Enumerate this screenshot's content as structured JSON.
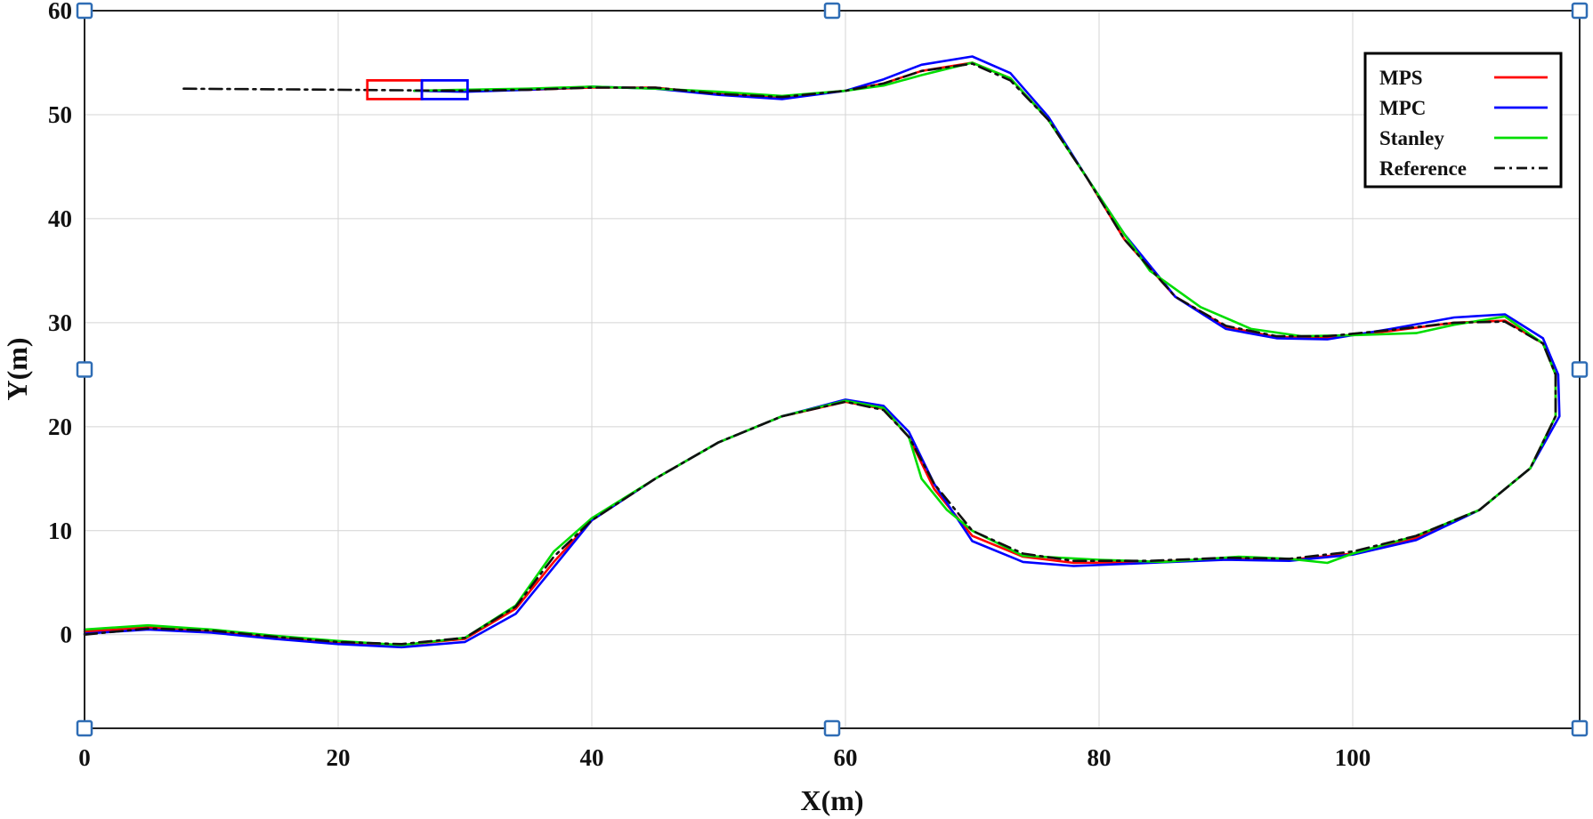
{
  "chart_data": {
    "type": "line",
    "xlabel": "X(m)",
    "ylabel": "Y(m)",
    "xlim": [
      0,
      118
    ],
    "ylim": [
      -9,
      60
    ],
    "xticks": [
      0,
      20,
      40,
      60,
      80,
      100
    ],
    "yticks": [
      0,
      10,
      20,
      30,
      40,
      50,
      60
    ],
    "grid": true,
    "legend_position": "top-right",
    "series": [
      {
        "name": "MPS",
        "color": "#ff0000",
        "style": "solid",
        "points": [
          [
            0,
            0.3
          ],
          [
            5,
            0.7
          ],
          [
            10,
            0.4
          ],
          [
            15,
            -0.2
          ],
          [
            20,
            -0.7
          ],
          [
            25,
            -1.0
          ],
          [
            30,
            -0.4
          ],
          [
            34,
            2.5
          ],
          [
            37,
            7
          ],
          [
            40,
            11
          ],
          [
            45,
            15
          ],
          [
            50,
            18.5
          ],
          [
            55,
            21
          ],
          [
            60,
            22.4
          ],
          [
            63,
            21.7
          ],
          [
            65,
            19
          ],
          [
            67,
            14
          ],
          [
            70,
            9.5
          ],
          [
            74,
            7.5
          ],
          [
            78,
            6.9
          ],
          [
            84,
            7.0
          ],
          [
            90,
            7.3
          ],
          [
            95,
            7.2
          ],
          [
            100,
            7.8
          ],
          [
            105,
            9.3
          ],
          [
            110,
            12
          ],
          [
            114,
            16
          ],
          [
            116,
            21
          ],
          [
            116,
            25
          ],
          [
            115,
            28
          ],
          [
            112,
            30.2
          ],
          [
            108,
            30.0
          ],
          [
            103,
            29.2
          ],
          [
            98,
            28.6
          ],
          [
            94,
            28.6
          ],
          [
            90,
            29.6
          ],
          [
            86,
            32.5
          ],
          [
            82,
            38
          ],
          [
            79,
            44
          ],
          [
            76,
            49.5
          ],
          [
            73,
            53.5
          ],
          [
            70,
            55
          ],
          [
            66,
            54.2
          ],
          [
            63,
            53
          ],
          [
            60,
            52.3
          ],
          [
            55,
            51.7
          ],
          [
            50,
            52
          ],
          [
            45,
            52.6
          ],
          [
            40,
            52.6
          ],
          [
            35,
            52.4
          ],
          [
            30,
            52.3
          ],
          [
            26,
            52.3
          ]
        ]
      },
      {
        "name": "MPC",
        "color": "#0000ff",
        "style": "solid",
        "points": [
          [
            0,
            0.1
          ],
          [
            5,
            0.5
          ],
          [
            10,
            0.2
          ],
          [
            15,
            -0.4
          ],
          [
            20,
            -0.9
          ],
          [
            25,
            -1.2
          ],
          [
            30,
            -0.7
          ],
          [
            34,
            2
          ],
          [
            37,
            6.5
          ],
          [
            40,
            11
          ],
          [
            45,
            15
          ],
          [
            50,
            18.5
          ],
          [
            55,
            21
          ],
          [
            60,
            22.6
          ],
          [
            63,
            22
          ],
          [
            65,
            19.5
          ],
          [
            67,
            14.5
          ],
          [
            70,
            9
          ],
          [
            74,
            7
          ],
          [
            78,
            6.6
          ],
          [
            84,
            6.9
          ],
          [
            90,
            7.2
          ],
          [
            95,
            7.1
          ],
          [
            100,
            7.7
          ],
          [
            105,
            9.1
          ],
          [
            110,
            12
          ],
          [
            114,
            16
          ],
          [
            116.3,
            21
          ],
          [
            116.2,
            25
          ],
          [
            115,
            28.5
          ],
          [
            112,
            30.8
          ],
          [
            108,
            30.5
          ],
          [
            103,
            29.4
          ],
          [
            98,
            28.4
          ],
          [
            94,
            28.5
          ],
          [
            90,
            29.4
          ],
          [
            86,
            32.5
          ],
          [
            82,
            38.5
          ],
          [
            79,
            44
          ],
          [
            76,
            49.8
          ],
          [
            73,
            54
          ],
          [
            70,
            55.6
          ],
          [
            66,
            54.8
          ],
          [
            63,
            53.4
          ],
          [
            60,
            52.3
          ],
          [
            55,
            51.5
          ],
          [
            50,
            51.9
          ],
          [
            45,
            52.5
          ],
          [
            40,
            52.7
          ],
          [
            35,
            52.4
          ],
          [
            30,
            52.2
          ],
          [
            26,
            52.3
          ]
        ]
      },
      {
        "name": "Stanley",
        "color": "#00dd00",
        "style": "solid",
        "points": [
          [
            0,
            0.5
          ],
          [
            5,
            0.9
          ],
          [
            10,
            0.5
          ],
          [
            15,
            -0.1
          ],
          [
            20,
            -0.6
          ],
          [
            25,
            -1.0
          ],
          [
            30,
            -0.3
          ],
          [
            34,
            2.8
          ],
          [
            37,
            8
          ],
          [
            40,
            11.2
          ],
          [
            45,
            15
          ],
          [
            50,
            18.5
          ],
          [
            55,
            21
          ],
          [
            60,
            22.5
          ],
          [
            63,
            21.8
          ],
          [
            65,
            19
          ],
          [
            66,
            15
          ],
          [
            68,
            12
          ],
          [
            70,
            10
          ],
          [
            74,
            7.6
          ],
          [
            80,
            7.2
          ],
          [
            85,
            7.0
          ],
          [
            91,
            7.5
          ],
          [
            95,
            7.3
          ],
          [
            98,
            6.9
          ],
          [
            100,
            7.8
          ],
          [
            105,
            9.5
          ],
          [
            110,
            12
          ],
          [
            114,
            16
          ],
          [
            116,
            21
          ],
          [
            116,
            25
          ],
          [
            115,
            28
          ],
          [
            112,
            30.6
          ],
          [
            108,
            29.8
          ],
          [
            105,
            29
          ],
          [
            100,
            28.8
          ],
          [
            96,
            28.7
          ],
          [
            92,
            29.4
          ],
          [
            88,
            31.5
          ],
          [
            84,
            35
          ],
          [
            82,
            38.5
          ],
          [
            79,
            44
          ],
          [
            76,
            49.5
          ],
          [
            73,
            53.5
          ],
          [
            70,
            55
          ],
          [
            66,
            53.8
          ],
          [
            63,
            52.8
          ],
          [
            60,
            52.3
          ],
          [
            55,
            51.8
          ],
          [
            50,
            52.2
          ],
          [
            45,
            52.5
          ],
          [
            40,
            52.7
          ],
          [
            35,
            52.5
          ],
          [
            30,
            52.4
          ],
          [
            26,
            52.3
          ]
        ]
      },
      {
        "name": "Reference",
        "color": "#111111",
        "style": "dashdot",
        "points": [
          [
            0,
            0
          ],
          [
            5,
            0.6
          ],
          [
            10,
            0.4
          ],
          [
            15,
            -0.2
          ],
          [
            20,
            -0.7
          ],
          [
            25,
            -0.9
          ],
          [
            30,
            -0.3
          ],
          [
            34,
            2.7
          ],
          [
            37,
            7.5
          ],
          [
            40,
            11
          ],
          [
            45,
            15
          ],
          [
            50,
            18.5
          ],
          [
            55,
            21
          ],
          [
            60,
            22.4
          ],
          [
            63,
            21.6
          ],
          [
            65,
            19
          ],
          [
            67,
            14.5
          ],
          [
            70,
            10
          ],
          [
            74,
            7.8
          ],
          [
            78,
            7.1
          ],
          [
            84,
            7.1
          ],
          [
            90,
            7.4
          ],
          [
            95,
            7.3
          ],
          [
            100,
            8
          ],
          [
            105,
            9.5
          ],
          [
            110,
            12
          ],
          [
            114,
            16
          ],
          [
            116,
            21
          ],
          [
            116,
            25
          ],
          [
            115,
            28
          ],
          [
            112,
            30.1
          ],
          [
            108,
            30.0
          ],
          [
            103,
            29.3
          ],
          [
            98,
            28.7
          ],
          [
            94,
            28.7
          ],
          [
            90,
            29.7
          ],
          [
            86,
            32.5
          ],
          [
            82,
            38
          ],
          [
            79,
            44
          ],
          [
            76,
            49.5
          ],
          [
            73,
            53.3
          ],
          [
            70,
            54.9
          ],
          [
            66,
            54.2
          ],
          [
            63,
            53
          ],
          [
            60,
            52.3
          ],
          [
            55,
            51.7
          ],
          [
            50,
            52
          ],
          [
            45,
            52.6
          ],
          [
            40,
            52.6
          ],
          [
            35,
            52.4
          ],
          [
            30,
            52.3
          ],
          [
            20,
            52.4
          ],
          [
            7.5,
            52.5
          ]
        ]
      }
    ],
    "vehicles": [
      {
        "color": "#ff0000",
        "x": [
          22.3,
          26.6
        ],
        "y": [
          51.5,
          53.3
        ]
      },
      {
        "color": "#0000ff",
        "x": [
          26.6,
          30.2
        ],
        "y": [
          51.5,
          53.3
        ]
      }
    ]
  }
}
